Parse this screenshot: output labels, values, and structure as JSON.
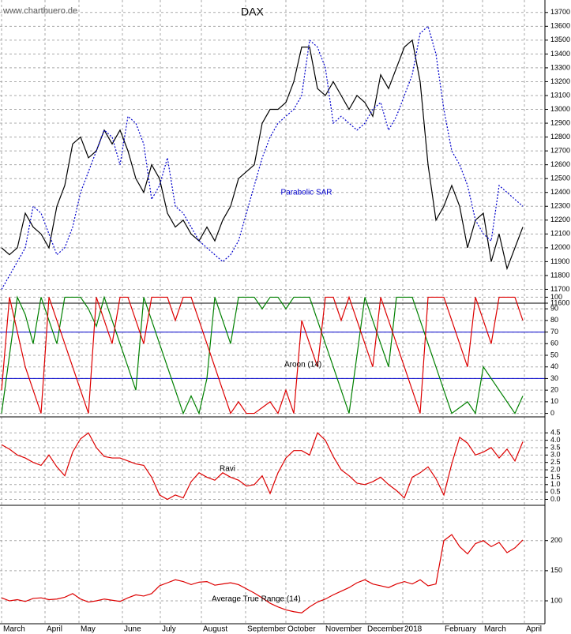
{
  "watermark": "www.chartbuero.de",
  "chart_data": [
    {
      "type": "line",
      "title": "DAX",
      "annotation": "Parabolic SAR",
      "ylim": [
        11600,
        13790
      ],
      "yticks": [
        11600,
        11700,
        11800,
        11900,
        12000,
        12100,
        12200,
        12300,
        12400,
        12500,
        12600,
        12700,
        12800,
        12900,
        13000,
        13100,
        13200,
        13300,
        13400,
        13500,
        13600,
        13700
      ],
      "grid": true,
      "series": [
        {
          "color": "#000000",
          "style": "solid",
          "values": [
            12000,
            11950,
            12000,
            12250,
            12150,
            12100,
            12000,
            12300,
            12450,
            12750,
            12800,
            12650,
            12700,
            12850,
            12750,
            12850,
            12700,
            12500,
            12400,
            12600,
            12500,
            12250,
            12150,
            12200,
            12100,
            12050,
            12150,
            12050,
            12200,
            12300,
            12500,
            12550,
            12600,
            12900,
            13000,
            13000,
            13050,
            13200,
            13450,
            13450,
            13150,
            13100,
            13200,
            13100,
            13000,
            13100,
            13050,
            12950,
            13250,
            13150,
            13300,
            13450,
            13500,
            13200,
            12600,
            12200,
            12300,
            12450,
            12300,
            12000,
            12200,
            12250,
            11900,
            12100,
            11850,
            12000,
            12150
          ]
        },
        {
          "color": "#0000cc",
          "style": "dotted",
          "values": [
            11700,
            11800,
            11900,
            12000,
            12300,
            12250,
            12100,
            11950,
            12000,
            12150,
            12400,
            12550,
            12700,
            12850,
            12800,
            12600,
            12950,
            12900,
            12750,
            12350,
            12450,
            12650,
            12300,
            12250,
            12150,
            12050,
            12000,
            11950,
            11900,
            11950,
            12050,
            12250,
            12450,
            12650,
            12800,
            12900,
            12950,
            13000,
            13100,
            13500,
            13450,
            13300,
            12900,
            12950,
            12900,
            12850,
            12900,
            13000,
            13050,
            12850,
            12950,
            13100,
            13250,
            13550,
            13600,
            13400,
            13000,
            12700,
            12600,
            12450,
            12200,
            12100,
            12050,
            12450,
            12400,
            12350,
            12300
          ]
        }
      ]
    },
    {
      "type": "line",
      "title": "Aroon (14)",
      "ylim": [
        -3,
        103
      ],
      "yticks": [
        0,
        10,
        20,
        30,
        40,
        50,
        60,
        70,
        80,
        90,
        100
      ],
      "grid": true,
      "levels": [
        30,
        70
      ],
      "level_color": "#0000cc",
      "series": [
        {
          "color": "#008000",
          "style": "solid",
          "values": [
            0,
            50,
            100,
            85,
            60,
            100,
            80,
            60,
            100,
            100,
            100,
            90,
            75,
            100,
            80,
            60,
            40,
            20,
            100,
            80,
            60,
            40,
            20,
            0,
            15,
            0,
            30,
            100,
            80,
            60,
            100,
            100,
            100,
            90,
            100,
            100,
            90,
            100,
            100,
            100,
            80,
            60,
            40,
            20,
            0,
            50,
            100,
            80,
            60,
            40,
            100,
            100,
            100,
            80,
            60,
            40,
            20,
            0,
            5,
            10,
            0,
            40,
            30,
            20,
            10,
            0,
            15
          ]
        },
        {
          "color": "#dd0000",
          "style": "solid",
          "values": [
            20,
            100,
            70,
            40,
            20,
            0,
            100,
            80,
            60,
            40,
            20,
            0,
            100,
            80,
            60,
            100,
            100,
            80,
            60,
            100,
            100,
            100,
            80,
            100,
            100,
            80,
            60,
            40,
            20,
            0,
            10,
            0,
            0,
            5,
            10,
            0,
            20,
            0,
            80,
            60,
            40,
            100,
            100,
            80,
            100,
            80,
            60,
            40,
            100,
            80,
            60,
            40,
            20,
            0,
            100,
            100,
            100,
            80,
            60,
            40,
            100,
            80,
            60,
            100,
            100,
            100,
            80
          ]
        }
      ]
    },
    {
      "type": "line",
      "title": "Ravi",
      "ylim": [
        -0.4,
        5.1
      ],
      "yticks": [
        {
          "value": 0,
          "label": "0.0"
        },
        0.5,
        {
          "value": 1,
          "label": "1.0"
        },
        1.5,
        {
          "value": 2,
          "label": "2.0"
        },
        2.5,
        {
          "value": 3,
          "label": "3.0"
        },
        3.5,
        {
          "value": 4,
          "label": "4.0"
        },
        4.5
      ],
      "grid": true,
      "series": [
        {
          "color": "#dd0000",
          "style": "solid",
          "values": [
            3.7,
            3.4,
            3.0,
            2.8,
            2.5,
            2.3,
            3.0,
            2.2,
            1.6,
            3.2,
            4.1,
            4.5,
            3.5,
            2.9,
            2.8,
            2.8,
            2.6,
            2.4,
            2.3,
            1.5,
            0.3,
            0.0,
            0.3,
            0.1,
            1.2,
            1.8,
            1.5,
            1.3,
            1.8,
            1.5,
            1.3,
            0.9,
            1.0,
            1.6,
            0.4,
            1.8,
            2.8,
            3.3,
            3.3,
            3.0,
            4.5,
            4.0,
            2.9,
            2.0,
            1.6,
            1.1,
            1.0,
            1.2,
            1.5,
            1.0,
            0.6,
            0.1,
            1.5,
            1.8,
            2.2,
            1.4,
            0.3,
            2.4,
            4.2,
            3.8,
            3.0,
            3.2,
            3.5,
            2.8,
            3.4,
            2.6,
            3.9
          ]
        }
      ]
    },
    {
      "type": "line",
      "title": "Average True Range (14)",
      "ylim": [
        62,
        256
      ],
      "yticks": [
        100,
        150,
        200
      ],
      "grid": true,
      "xlim": [
        0,
        68.8
      ],
      "xticks": [
        {
          "value": 0,
          "label": "March"
        },
        {
          "value": 5.5,
          "label": "April"
        },
        {
          "value": 9.8,
          "label": "May"
        },
        {
          "value": 15.3,
          "label": "June"
        },
        {
          "value": 20.1,
          "label": "July"
        },
        {
          "value": 25.3,
          "label": "August"
        },
        {
          "value": 30.9,
          "label": "September"
        },
        {
          "value": 36,
          "label": "October"
        },
        {
          "value": 40.8,
          "label": "November"
        },
        {
          "value": 46.1,
          "label": "December"
        },
        {
          "value": 50.8,
          "label": "2018"
        },
        {
          "value": 55.9,
          "label": "February"
        },
        {
          "value": 60.9,
          "label": "March"
        },
        {
          "value": 66.2,
          "label": "April"
        }
      ],
      "series": [
        {
          "color": "#dd0000",
          "style": "solid",
          "values": [
            105,
            100,
            102,
            99,
            104,
            105,
            102,
            103,
            106,
            112,
            103,
            98,
            100,
            103,
            101,
            99,
            105,
            110,
            108,
            112,
            125,
            130,
            135,
            132,
            127,
            131,
            132,
            126,
            128,
            130,
            127,
            120,
            113,
            105,
            96,
            90,
            85,
            82,
            80,
            90,
            98,
            103,
            110,
            116,
            122,
            130,
            135,
            128,
            125,
            122,
            128,
            132,
            128,
            135,
            125,
            128,
            200,
            210,
            190,
            178,
            195,
            200,
            190,
            197,
            180,
            188,
            201
          ]
        }
      ]
    }
  ]
}
